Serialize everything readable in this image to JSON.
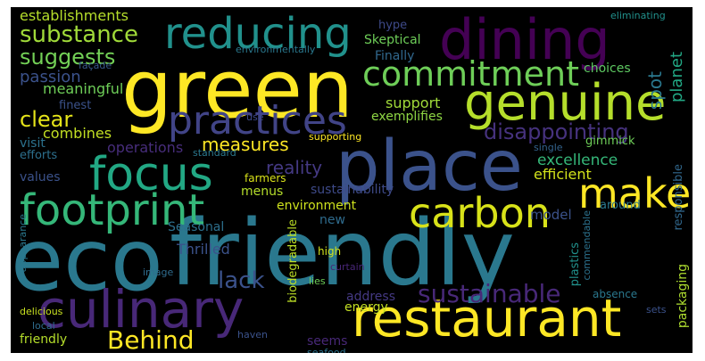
{
  "wordcloud": {
    "background": "#000000",
    "words": [
      {
        "id": "eco",
        "text": "eco",
        "color": "#2a788e"
      },
      {
        "id": "friendly_big",
        "text": "friendly",
        "color": "#2a788e"
      },
      {
        "id": "green",
        "text": "green",
        "color": "#fde725"
      },
      {
        "id": "place",
        "text": "place",
        "color": "#3b528b"
      },
      {
        "id": "dining",
        "text": "dining",
        "color": "#440154"
      },
      {
        "id": "restaurant",
        "text": "restaurant",
        "color": "#fde725"
      },
      {
        "id": "culinary",
        "text": "culinary",
        "color": "#482878"
      },
      {
        "id": "genuine",
        "text": "genuine",
        "color": "#b5de2b"
      },
      {
        "id": "reducing",
        "text": "reducing",
        "color": "#21918c"
      },
      {
        "id": "focus",
        "text": "focus",
        "color": "#22a884"
      },
      {
        "id": "footprint",
        "text": "footprint",
        "color": "#35b779"
      },
      {
        "id": "carbon",
        "text": "carbon",
        "color": "#d8e219"
      },
      {
        "id": "practices",
        "text": "practices",
        "color": "#414487"
      },
      {
        "id": "commitment",
        "text": "commitment",
        "color": "#6ece58"
      },
      {
        "id": "make",
        "text": "make",
        "color": "#fde725"
      },
      {
        "id": "sustainable",
        "text": "sustainable",
        "color": "#482878"
      },
      {
        "id": "behind",
        "text": "Behind",
        "color": "#fde725"
      },
      {
        "id": "disappointing",
        "text": "disappointing",
        "color": "#46327e"
      },
      {
        "id": "substance",
        "text": "substance",
        "color": "#a0da39"
      },
      {
        "id": "suggests",
        "text": "suggests",
        "color": "#73d056"
      },
      {
        "id": "clear",
        "text": "clear",
        "color": "#e5e419"
      },
      {
        "id": "measures",
        "text": "measures",
        "color": "#fde725"
      },
      {
        "id": "establishments",
        "text": "establishments",
        "color": "#b5de2b"
      },
      {
        "id": "lack",
        "text": "lack",
        "color": "#3b528b"
      },
      {
        "id": "reality",
        "text": "reality",
        "color": "#443983"
      },
      {
        "id": "excellence",
        "text": "excellence",
        "color": "#35b779"
      },
      {
        "id": "passion",
        "text": "passion",
        "color": "#3b528b"
      },
      {
        "id": "meaningful",
        "text": "meaningful",
        "color": "#6ece58"
      },
      {
        "id": "support",
        "text": "support",
        "color": "#a0da39"
      },
      {
        "id": "spot",
        "text": "spot",
        "color": "#2a788e"
      },
      {
        "id": "planet",
        "text": "planet",
        "color": "#22a884"
      },
      {
        "id": "skeptical",
        "text": "Skeptical",
        "color": "#6ece58"
      },
      {
        "id": "finally",
        "text": "Finally",
        "color": "#31688e"
      },
      {
        "id": "choices",
        "text": "choices",
        "color": "#5ec962"
      },
      {
        "id": "hype",
        "text": "hype",
        "color": "#3e4a89"
      },
      {
        "id": "eliminating",
        "text": "eliminating",
        "color": "#21918c"
      },
      {
        "id": "environmentally",
        "text": "environmentally",
        "color": "#2a788e"
      },
      {
        "id": "facade",
        "text": "façade",
        "color": "#38598c"
      },
      {
        "id": "finest",
        "text": "finest",
        "color": "#3b528b"
      },
      {
        "id": "exemplifies",
        "text": "exemplifies",
        "color": "#8fd744"
      },
      {
        "id": "use",
        "text": "use",
        "color": "#3e4a89"
      },
      {
        "id": "combines",
        "text": "combines",
        "color": "#c2df23"
      },
      {
        "id": "operations",
        "text": "operations",
        "color": "#472d7b"
      },
      {
        "id": "visit",
        "text": "visit",
        "color": "#2c728e"
      },
      {
        "id": "efforts",
        "text": "efforts",
        "color": "#2d708e"
      },
      {
        "id": "values",
        "text": "values",
        "color": "#3b528b"
      },
      {
        "id": "supporting",
        "text": "supporting",
        "color": "#fde725"
      },
      {
        "id": "standard",
        "text": "standard",
        "color": "#2a788e"
      },
      {
        "id": "single",
        "text": "single",
        "color": "#33638d"
      },
      {
        "id": "gimmick",
        "text": "gimmick",
        "color": "#6ece58"
      },
      {
        "id": "sustainability",
        "text": "sustainability",
        "color": "#3e4a89"
      },
      {
        "id": "efficient",
        "text": "efficient",
        "color": "#d2e21b"
      },
      {
        "id": "farmers",
        "text": "farmers",
        "color": "#dae319"
      },
      {
        "id": "menus",
        "text": "menus",
        "color": "#b5de2b"
      },
      {
        "id": "environment",
        "text": "environment",
        "color": "#cde11d"
      },
      {
        "id": "new",
        "text": "new",
        "color": "#2f6c8e"
      },
      {
        "id": "model",
        "text": "model",
        "color": "#3b528b"
      },
      {
        "id": "around",
        "text": "around",
        "color": "#2a788e"
      },
      {
        "id": "responsible",
        "text": "responsible",
        "color": "#31688e"
      },
      {
        "id": "packaging",
        "text": "packaging",
        "color": "#addc30"
      },
      {
        "id": "seasonal",
        "text": "Seasonal",
        "color": "#2d708e"
      },
      {
        "id": "thrilled",
        "text": "Thrilled",
        "color": "#3b528b"
      },
      {
        "id": "biodegradable",
        "text": "biodegradable",
        "color": "#bddf26"
      },
      {
        "id": "appearance",
        "text": "appearance",
        "color": "#2a788e"
      },
      {
        "id": "image",
        "text": "image",
        "color": "#2f6c8e"
      },
      {
        "id": "plastics",
        "text": "plastics",
        "color": "#21918c"
      },
      {
        "id": "commendable",
        "text": "commendable",
        "color": "#2c728e"
      },
      {
        "id": "high",
        "text": "high",
        "color": "#d2e21b"
      },
      {
        "id": "curtain",
        "text": "curtain",
        "color": "#482677"
      },
      {
        "id": "lies",
        "text": "lies",
        "color": "#6ece58"
      },
      {
        "id": "address",
        "text": "address",
        "color": "#443983"
      },
      {
        "id": "absence",
        "text": "absence",
        "color": "#2a788e"
      },
      {
        "id": "energy",
        "text": "energy",
        "color": "#c2df23"
      },
      {
        "id": "sets",
        "text": "sets",
        "color": "#3b528b"
      },
      {
        "id": "seems",
        "text": "seems",
        "color": "#482878"
      },
      {
        "id": "delicious",
        "text": "delicious",
        "color": "#c8e020"
      },
      {
        "id": "local",
        "text": "local",
        "color": "#2f6c8e"
      },
      {
        "id": "friendly_small",
        "text": "friendly",
        "color": "#b5de2b"
      },
      {
        "id": "haven",
        "text": "haven",
        "color": "#3b528b"
      },
      {
        "id": "seafood",
        "text": "seafood",
        "color": "#2c728e"
      }
    ]
  }
}
